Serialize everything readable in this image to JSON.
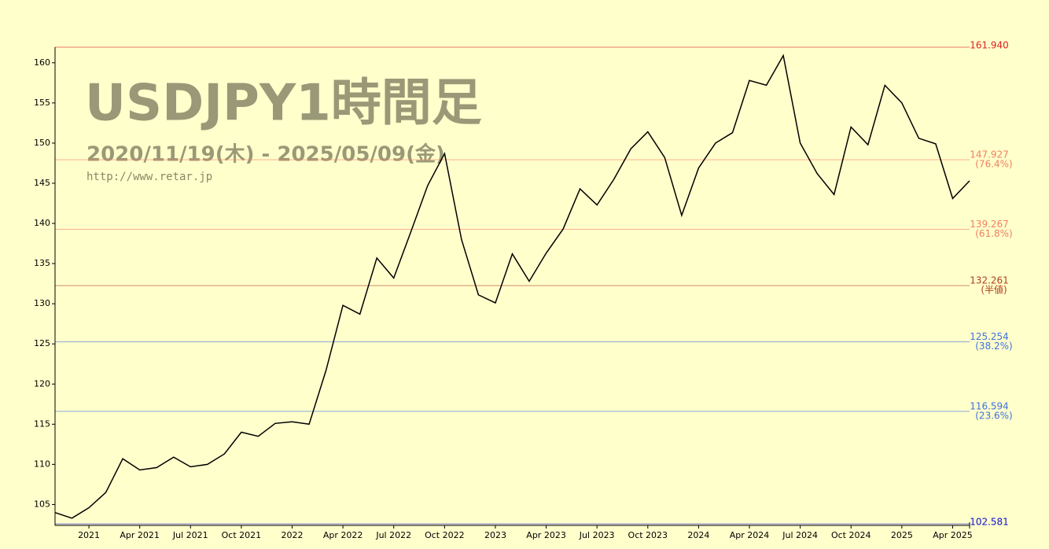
{
  "chart_data": {
    "type": "line",
    "title": "USDJPY1時間足",
    "subtitle": "2020/11/19(木) - 2025/05/09(金)",
    "source": "http://www.retar.jp",
    "x": [
      "2020-11",
      "2020-12",
      "2021-01",
      "2021-02",
      "2021-03",
      "2021-04",
      "2021-05",
      "2021-06",
      "2021-07",
      "2021-08",
      "2021-09",
      "2021-10",
      "2021-11",
      "2021-12",
      "2022-01",
      "2022-02",
      "2022-03",
      "2022-04",
      "2022-05",
      "2022-06",
      "2022-07",
      "2022-08",
      "2022-09",
      "2022-10",
      "2022-11",
      "2022-12",
      "2023-01",
      "2023-02",
      "2023-03",
      "2023-04",
      "2023-05",
      "2023-06",
      "2023-07",
      "2023-08",
      "2023-09",
      "2023-10",
      "2023-11",
      "2023-12",
      "2024-01",
      "2024-02",
      "2024-03",
      "2024-04",
      "2024-05",
      "2024-06",
      "2024-07",
      "2024-08",
      "2024-09",
      "2024-10",
      "2024-11",
      "2024-12",
      "2025-01",
      "2025-02",
      "2025-03",
      "2025-04",
      "2025-05"
    ],
    "series": [
      {
        "name": "USDJPY",
        "color": "#000000",
        "values": [
          104.0,
          103.3,
          104.6,
          106.5,
          110.7,
          109.3,
          109.6,
          110.9,
          109.7,
          110.0,
          111.3,
          114.0,
          113.5,
          115.1,
          115.3,
          115.0,
          121.7,
          129.8,
          128.7,
          135.7,
          133.2,
          138.9,
          144.7,
          148.7,
          138.0,
          131.1,
          130.1,
          136.2,
          132.8,
          136.3,
          139.3,
          144.3,
          142.3,
          145.5,
          149.3,
          151.4,
          148.2,
          141.0,
          146.9,
          150.0,
          151.3,
          157.8,
          157.2,
          160.9,
          150.0,
          146.2,
          143.6,
          152.0,
          149.8,
          157.2,
          155.0,
          150.6,
          149.9,
          143.1,
          145.3
        ]
      }
    ],
    "xlim": [
      "2020-11",
      "2025-05"
    ],
    "xticks": [
      {
        "value": "2021-01",
        "label": "2021"
      },
      {
        "value": "2021-04",
        "label": "Apr 2021"
      },
      {
        "value": "2021-07",
        "label": "Jul 2021"
      },
      {
        "value": "2021-10",
        "label": "Oct 2021"
      },
      {
        "value": "2022-01",
        "label": "2022"
      },
      {
        "value": "2022-04",
        "label": "Apr 2022"
      },
      {
        "value": "2022-07",
        "label": "Jul 2022"
      },
      {
        "value": "2022-10",
        "label": "Oct 2022"
      },
      {
        "value": "2023-01",
        "label": "2023"
      },
      {
        "value": "2023-04",
        "label": "Apr 2023"
      },
      {
        "value": "2023-07",
        "label": "Jul 2023"
      },
      {
        "value": "2023-10",
        "label": "Oct 2023"
      },
      {
        "value": "2024-01",
        "label": "2024"
      },
      {
        "value": "2024-04",
        "label": "Apr 2024"
      },
      {
        "value": "2024-07",
        "label": "Jul 2024"
      },
      {
        "value": "2024-10",
        "label": "Oct 2024"
      },
      {
        "value": "2025-01",
        "label": "2025"
      },
      {
        "value": "2025-04",
        "label": "Apr 2025"
      }
    ],
    "ylim": [
      102.4,
      161.94
    ],
    "yticks": [
      105,
      110,
      115,
      120,
      125,
      130,
      135,
      140,
      145,
      150,
      155,
      160
    ],
    "levels": [
      {
        "value": 161.94,
        "label": "161.940",
        "color": "#e02020"
      },
      {
        "value": 147.927,
        "label": "147.927",
        "note": "(76.4%)",
        "color": "#f08060"
      },
      {
        "value": 139.267,
        "label": "139.267",
        "note": "(61.8%)",
        "color": "#f08060"
      },
      {
        "value": 132.261,
        "label": "132.261",
        "note": "(半値)",
        "color": "#b04020"
      },
      {
        "value": 125.254,
        "label": "125.254",
        "note": "(38.2%)",
        "color": "#4070e0"
      },
      {
        "value": 116.594,
        "label": "116.594",
        "note": "(23.6%)",
        "color": "#4070e0"
      },
      {
        "value": 102.581,
        "label": "102.581",
        "color": "#1010d0"
      }
    ]
  }
}
